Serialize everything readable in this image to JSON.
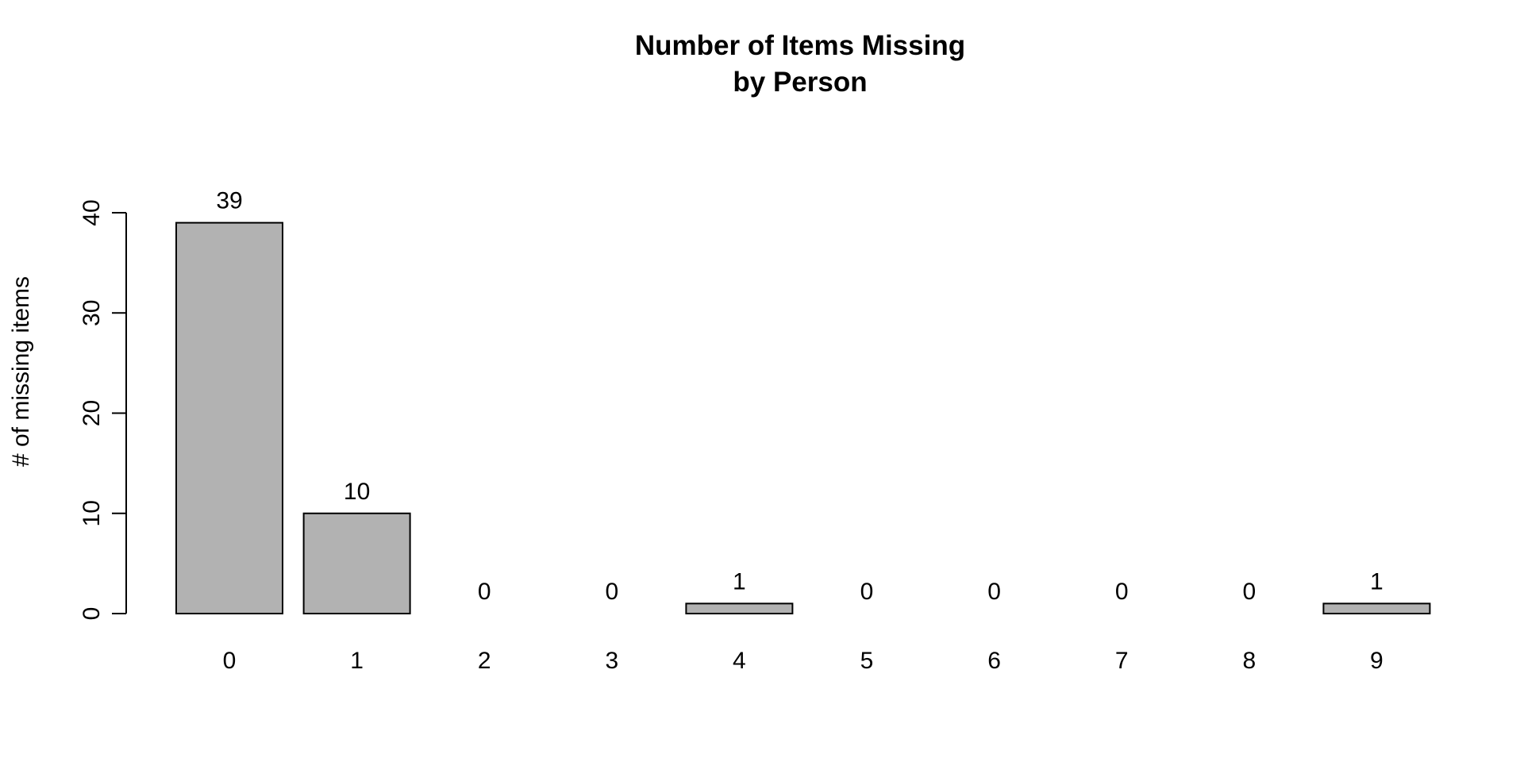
{
  "chart_data": {
    "type": "bar",
    "title_lines": [
      "Number of Items Missing",
      "by Person"
    ],
    "xlabel": "",
    "ylabel": "# of missing items",
    "categories": [
      "0",
      "1",
      "2",
      "3",
      "4",
      "5",
      "6",
      "7",
      "8",
      "9"
    ],
    "values": [
      39,
      10,
      0,
      0,
      1,
      0,
      0,
      0,
      0,
      1
    ],
    "data_labels": [
      "39",
      "10",
      "0",
      "0",
      "1",
      "0",
      "0",
      "0",
      "0",
      "1"
    ],
    "yticks": [
      0,
      10,
      20,
      30,
      40
    ],
    "ylim": [
      0,
      40
    ],
    "grid": false,
    "legend": "none",
    "bar_color": "#b2b2b2",
    "bar_edge_color": "#000000"
  }
}
